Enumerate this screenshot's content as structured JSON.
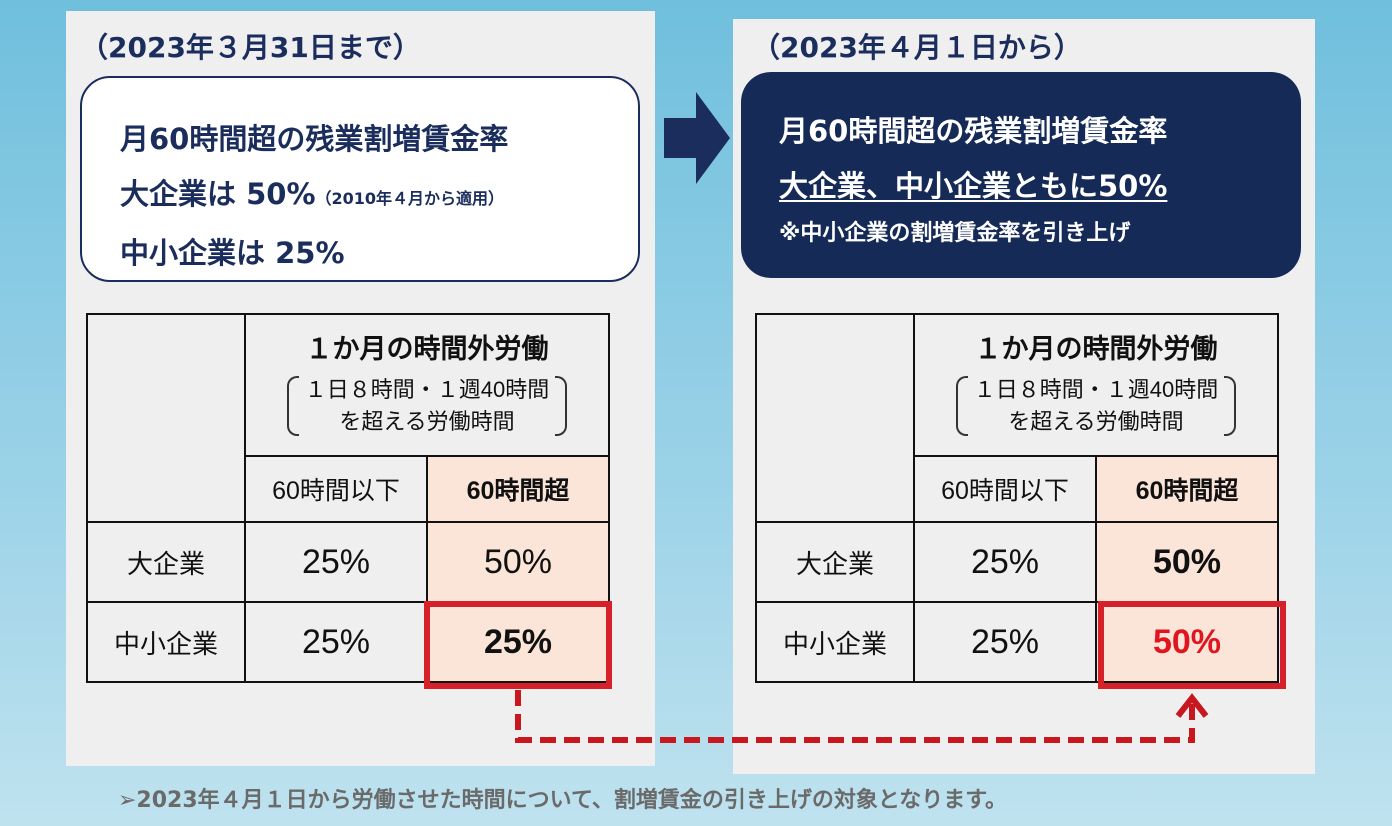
{
  "left": {
    "heading": "（2023年３月31日まで）",
    "box": {
      "line1": "月60時間超の残業割増賃金率",
      "line2_main": "大企業は 50%",
      "line2_note": "（2010年４月から適用）",
      "line3": "中小企業は 25%"
    },
    "table": {
      "header_title": "１か月の時間外労働",
      "header_sub1": "１日８時間・１週40時間",
      "header_sub2": "を超える労働時間",
      "col_under": "60時間以下",
      "col_over": "60時間超",
      "rows": [
        {
          "label": "大企業",
          "under": "25%",
          "over": "50%"
        },
        {
          "label": "中小企業",
          "under": "25%",
          "over": "25%"
        }
      ]
    }
  },
  "right": {
    "heading": "（2023年４月１日から）",
    "box": {
      "line1": "月60時間超の残業割増賃金率",
      "line2": "大企業、中小企業ともに50%",
      "note": "※中小企業の割増賃金率を引き上げ"
    },
    "table": {
      "header_title": "１か月の時間外労働",
      "header_sub1": "１日８時間・１週40時間",
      "header_sub2": "を超える労働時間",
      "col_under": "60時間以下",
      "col_over": "60時間超",
      "rows": [
        {
          "label": "大企業",
          "under": "25%",
          "over": "50%"
        },
        {
          "label": "中小企業",
          "under": "25%",
          "over": "50%"
        }
      ]
    }
  },
  "footer": "➢2023年４月１日から労働させた時間について、割増賃金の引き上げの対象となります。",
  "colors": {
    "navy": "#1b2d5c",
    "dark_box": "#162a58",
    "highlight_red": "#d6202a",
    "peach": "#fbe5d8",
    "value_red": "#e0151f"
  }
}
